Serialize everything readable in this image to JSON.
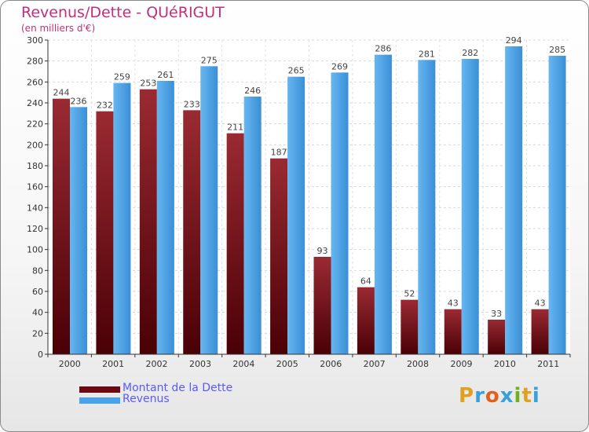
{
  "page": {
    "title": "Revenus/Dette - QUéRIGUT",
    "subtitle": "(en milliers d'€)"
  },
  "chart_data": {
    "type": "bar",
    "title": "Revenus/Dette - QUéRIGUT",
    "subtitle": "(en milliers d'€)",
    "xlabel": "",
    "ylabel": "",
    "ylim": [
      0,
      300
    ],
    "y_ticks": [
      0,
      20,
      40,
      60,
      80,
      100,
      120,
      140,
      160,
      180,
      200,
      220,
      240,
      260,
      280,
      300
    ],
    "grid": true,
    "legend_position": "bottom-left",
    "categories": [
      "2000",
      "2001",
      "2002",
      "2003",
      "2004",
      "2005",
      "2006",
      "2007",
      "2008",
      "2009",
      "2010",
      "2011"
    ],
    "series": [
      {
        "name": "Montant de la Dette",
        "color": "#7a1c24",
        "values": [
          244,
          232,
          253,
          233,
          211,
          187,
          93,
          64,
          52,
          43,
          33,
          43
        ]
      },
      {
        "name": "Revenus",
        "color": "#4aa3e8",
        "values": [
          236,
          259,
          261,
          275,
          246,
          265,
          269,
          286,
          281,
          282,
          294,
          285
        ]
      }
    ]
  },
  "legend": {
    "debt_label": "Montant de la Dette",
    "revenue_label": "Revenus",
    "debt_color": "#6a0a10",
    "revenue_color": "#4aa3e8"
  },
  "logo": {
    "letters": [
      "P",
      "r",
      "o",
      "x",
      "i",
      "t",
      "i"
    ],
    "colors": [
      "#e0a020",
      "#3aa0d8",
      "#e06020",
      "#3aa0d8",
      "#70b020",
      "#e0a020",
      "#3aa0d8"
    ]
  }
}
